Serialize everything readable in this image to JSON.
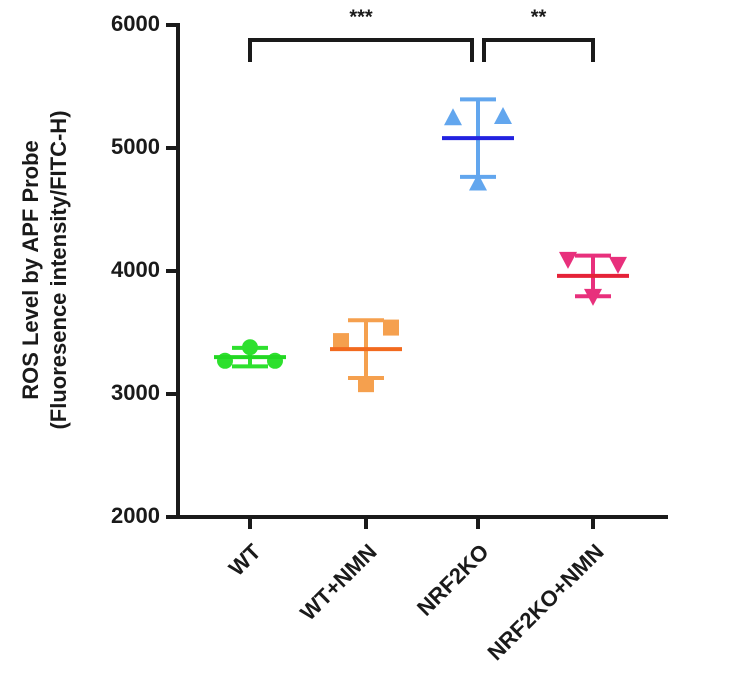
{
  "chart_data": {
    "type": "dotplot",
    "ylabel": [
      "ROS Level by APF Probe",
      "(Fluoresence intensity/FITC-H)"
    ],
    "categories": [
      "WT",
      "WT+NMN",
      "NRF2KO",
      "NRF2KO+NMN"
    ],
    "groups": [
      {
        "points": [
          3270,
          3380,
          3270
        ],
        "mean": 3300,
        "sd": 75,
        "color": "#2ee02e",
        "mean_color": "#22d822",
        "marker": "circle"
      },
      {
        "points": [
          3430,
          3080,
          3540
        ],
        "mean": 3365,
        "sd": 235,
        "color": "#f5a04e",
        "mean_color": "#f26a1e",
        "marker": "square"
      },
      {
        "points": [
          5250,
          4720,
          5260
        ],
        "mean": 5080,
        "sd": 315,
        "color": "#62a6ee",
        "mean_color": "#2222e0",
        "marker": "triangle"
      },
      {
        "points": [
          4090,
          3790,
          4050
        ],
        "mean": 3960,
        "sd": 165,
        "color": "#e8307c",
        "mean_color": "#e52238",
        "marker": "triangle-down"
      }
    ],
    "significance": [
      {
        "from": 0,
        "to": 2,
        "label": "***"
      },
      {
        "from": 2,
        "to": 3,
        "label": "**"
      }
    ],
    "ylim": [
      2000,
      6000
    ],
    "yticks": [
      2000,
      3000,
      4000,
      5000,
      6000
    ]
  }
}
